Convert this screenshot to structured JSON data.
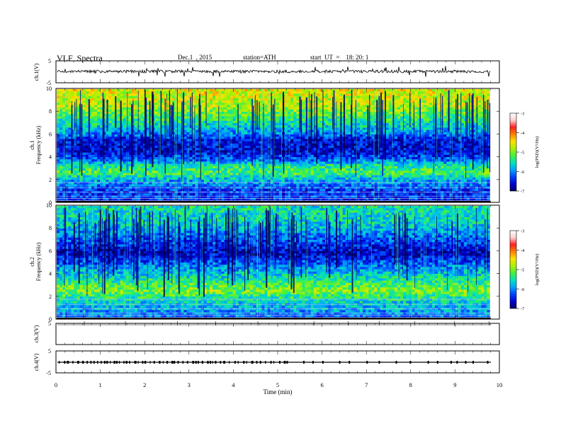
{
  "header": {
    "title": "VLF  Spectra",
    "date": "Dec.1  , 2015",
    "station": "station=ATH",
    "start_ut": "start  UT  =    18: 20: 1"
  },
  "colors": {
    "trace": "#000000",
    "colormap": [
      "#000066",
      "#0000d0",
      "#0040ff",
      "#00a0ff",
      "#00e0c0",
      "#40f040",
      "#b0f000",
      "#ffe000",
      "#ff8000",
      "#ff2020",
      "#ffd0d0",
      "#ffffff"
    ]
  },
  "chart_data": {
    "type": "spectrogram",
    "xlabel": "Time  (min)",
    "xlim": [
      0,
      10
    ],
    "x_ticks": [
      0,
      1,
      2,
      3,
      4,
      5,
      6,
      7,
      8,
      9,
      10
    ],
    "data_end_min": 9.8,
    "panels": [
      {
        "id": "ch1-wave",
        "kind": "waveform",
        "ylabel": "ch.1(V)",
        "ylim": [
          -5,
          5
        ],
        "y_tick_labels": [
          "5",
          "-5"
        ]
      },
      {
        "id": "ch1-spec",
        "kind": "spectrogram",
        "ylabel_channel": "ch.1",
        "ylabel": "Frequency  (kHz)",
        "ylim": [
          0,
          10
        ],
        "y_ticks": [
          0,
          2,
          4,
          6,
          8,
          10
        ],
        "colorbar": {
          "label": "log(PSD)(V²/Hz)",
          "range": [
            -7,
            -3
          ],
          "ticks": [
            -7,
            -6,
            -5,
            -4,
            -3
          ]
        },
        "level_profile_kHz": [
          [
            0,
            -6.7
          ],
          [
            0.4,
            -6.3
          ],
          [
            1.0,
            -6.4
          ],
          [
            2.0,
            -5.8
          ],
          [
            2.6,
            -5.2
          ],
          [
            3.2,
            -5.4
          ],
          [
            3.8,
            -6.2
          ],
          [
            4.5,
            -6.6
          ],
          [
            5.5,
            -6.5
          ],
          [
            6.2,
            -5.9
          ],
          [
            7.2,
            -5.4
          ],
          [
            8.5,
            -4.8
          ],
          [
            10,
            -4.6
          ]
        ]
      },
      {
        "id": "ch2-spec",
        "kind": "spectrogram",
        "ylabel_channel": "ch.2",
        "ylabel": "Frequency  (kHz)",
        "ylim": [
          0,
          10
        ],
        "y_ticks": [
          0,
          2,
          4,
          6,
          8,
          10
        ],
        "colorbar": {
          "label": "log(PSD)(V²/Hz)",
          "range": [
            -7,
            -3
          ],
          "ticks": [
            -7,
            -6,
            -5,
            -4,
            -3
          ]
        },
        "level_profile_kHz": [
          [
            0,
            -6.2
          ],
          [
            0.8,
            -5.9
          ],
          [
            1.6,
            -5.6
          ],
          [
            2.5,
            -5.0
          ],
          [
            3.2,
            -5.3
          ],
          [
            4.2,
            -5.8
          ],
          [
            5.0,
            -6.2
          ],
          [
            5.8,
            -6.7
          ],
          [
            6.5,
            -6.4
          ],
          [
            7.5,
            -6.0
          ],
          [
            8.5,
            -5.6
          ],
          [
            10,
            -5.5
          ]
        ]
      },
      {
        "id": "ch3-wave",
        "kind": "waveform",
        "ylabel": "ch.3(V)",
        "ylim": [
          -5,
          5
        ],
        "y_tick_labels": [
          "5"
        ]
      },
      {
        "id": "ch4-wave",
        "kind": "waveform",
        "ylabel": "ch.4(V)",
        "ylim": [
          -5,
          5
        ],
        "y_tick_labels": [
          "5",
          "-5"
        ]
      }
    ]
  }
}
